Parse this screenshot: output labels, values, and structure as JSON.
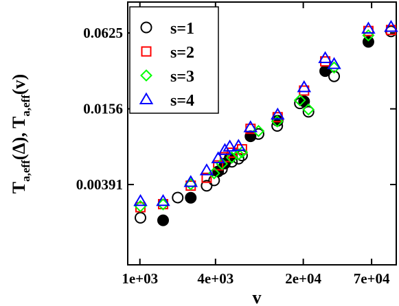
{
  "chart_data": {
    "type": "scatter",
    "title": "",
    "xlabel": "v",
    "ylabel_parts": {
      "T1": "T",
      "sub1": "a,eff",
      "mid": "(Δ),",
      "T2": "T",
      "sub2": "a,eff",
      "end": "(v)"
    },
    "x_scale": "log",
    "y_scale": "log",
    "xlim": [
      800,
      110000
    ],
    "ylim": [
      0.0009,
      0.11
    ],
    "x_ticks": [
      {
        "value": 1000,
        "label": "1e+03"
      },
      {
        "value": 4000,
        "label": "4e+03"
      },
      {
        "value": 20000,
        "label": "2e+04"
      },
      {
        "value": 70000,
        "label": "7e+04"
      }
    ],
    "y_ticks": [
      {
        "value": 0.00391,
        "label": "0.00391"
      },
      {
        "value": 0.0156,
        "label": "0.0156"
      },
      {
        "value": 0.0625,
        "label": "0.0625"
      }
    ],
    "legend": {
      "placement": "top-left",
      "entries": [
        "s=1",
        "s=2",
        "s=3",
        "s=4"
      ]
    },
    "series": [
      {
        "name": "s=1",
        "marker": "circle-open",
        "color": "#000000",
        "points": [
          [
            1010,
            0.00213
          ],
          [
            2000,
            0.00308
          ],
          [
            3400,
            0.00382
          ],
          [
            3900,
            0.00422
          ],
          [
            4500,
            0.00518
          ],
          [
            5400,
            0.00593
          ],
          [
            6100,
            0.00627
          ],
          [
            6500,
            0.00665
          ],
          [
            8800,
            0.00985
          ],
          [
            12400,
            0.01142
          ],
          [
            18800,
            0.01725
          ],
          [
            22000,
            0.0148
          ],
          [
            35200,
            0.0283
          ],
          [
            100000,
            0.0643
          ]
        ]
      },
      {
        "name": "s=1",
        "marker": "circle-filled",
        "color": "#000000",
        "points": [
          [
            1530,
            0.00203
          ],
          [
            2540,
            0.00307
          ],
          [
            4200,
            0.00497
          ],
          [
            4750,
            0.00575
          ],
          [
            5200,
            0.00636
          ],
          [
            7600,
            0.00945
          ],
          [
            12500,
            0.01255
          ],
          [
            20300,
            0.01788
          ],
          [
            29900,
            0.03113
          ],
          [
            66000,
            0.0531
          ]
        ]
      },
      {
        "name": "s=2",
        "marker": "square-open",
        "color": "#ff0000",
        "points": [
          [
            1010,
            0.00258
          ],
          [
            1530,
            0.00273
          ],
          [
            2540,
            0.00383
          ],
          [
            3400,
            0.00442
          ],
          [
            4200,
            0.00555
          ],
          [
            4750,
            0.00645
          ],
          [
            5400,
            0.007
          ],
          [
            6500,
            0.00745
          ],
          [
            7600,
            0.01083
          ],
          [
            12500,
            0.0134
          ],
          [
            20300,
            0.0218
          ],
          [
            29900,
            0.0372
          ],
          [
            66000,
            0.0648
          ],
          [
            100000,
            0.066
          ]
        ]
      },
      {
        "name": "s=3",
        "marker": "diamond-open",
        "color": "#00ff00",
        "points": [
          [
            1010,
            0.00263
          ],
          [
            1530,
            0.00272
          ],
          [
            2540,
            0.00393
          ],
          [
            3900,
            0.0048
          ],
          [
            4500,
            0.0057
          ],
          [
            5400,
            0.0064
          ],
          [
            6100,
            0.00678
          ],
          [
            6500,
            0.00705
          ],
          [
            8800,
            0.0104
          ],
          [
            12400,
            0.0124
          ],
          [
            18800,
            0.01825
          ],
          [
            22000,
            0.01542
          ],
          [
            35200,
            0.0332
          ],
          [
            66000,
            0.0598
          ]
        ]
      },
      {
        "name": "s=4",
        "marker": "triangle-open",
        "color": "#0000ff",
        "points": [
          [
            1010,
            0.00288
          ],
          [
            1530,
            0.00288
          ],
          [
            2540,
            0.00408
          ],
          [
            3400,
            0.00505
          ],
          [
            4200,
            0.0063
          ],
          [
            4750,
            0.00733
          ],
          [
            5200,
            0.0078
          ],
          [
            6100,
            0.0079
          ],
          [
            7600,
            0.0111
          ],
          [
            12500,
            0.014
          ],
          [
            20300,
            0.0231
          ],
          [
            29900,
            0.0393
          ],
          [
            35200,
            0.0353
          ],
          [
            66000,
            0.0674
          ],
          [
            100000,
            0.0696
          ]
        ]
      }
    ]
  }
}
